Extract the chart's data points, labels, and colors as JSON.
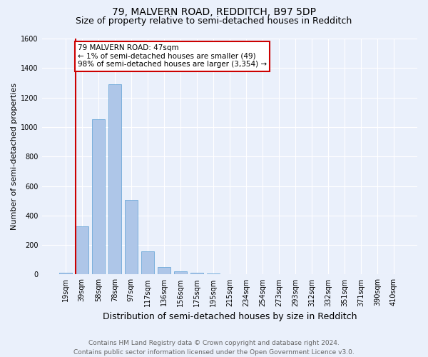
{
  "title": "79, MALVERN ROAD, REDDITCH, B97 5DP",
  "subtitle": "Size of property relative to semi-detached houses in Redditch",
  "xlabel": "Distribution of semi-detached houses by size in Redditch",
  "ylabel": "Number of semi-detached properties",
  "categories": [
    "19sqm",
    "39sqm",
    "58sqm",
    "78sqm",
    "97sqm",
    "117sqm",
    "136sqm",
    "156sqm",
    "175sqm",
    "195sqm",
    "215sqm",
    "234sqm",
    "254sqm",
    "273sqm",
    "293sqm",
    "312sqm",
    "332sqm",
    "351sqm",
    "371sqm",
    "390sqm",
    "410sqm"
  ],
  "values": [
    10,
    325,
    1055,
    1290,
    505,
    155,
    50,
    20,
    10,
    5,
    0,
    0,
    0,
    0,
    0,
    0,
    0,
    0,
    0,
    0,
    0
  ],
  "bar_color": "#aec6e8",
  "bar_edge_color": "#5a9fd4",
  "vline_color": "#cc0000",
  "vline_x_index": 1,
  "annotation_text": "79 MALVERN ROAD: 47sqm\n← 1% of semi-detached houses are smaller (49)\n98% of semi-detached houses are larger (3,354) →",
  "annotation_box_color": "#ffffff",
  "annotation_box_edgecolor": "#cc0000",
  "ylim": [
    0,
    1600
  ],
  "yticks": [
    0,
    200,
    400,
    600,
    800,
    1000,
    1200,
    1400,
    1600
  ],
  "background_color": "#eaf0fb",
  "footer": "Contains HM Land Registry data © Crown copyright and database right 2024.\nContains public sector information licensed under the Open Government Licence v3.0.",
  "title_fontsize": 10,
  "subtitle_fontsize": 9,
  "xlabel_fontsize": 9,
  "ylabel_fontsize": 8,
  "footer_fontsize": 6.5,
  "tick_fontsize": 7,
  "annot_fontsize": 7.5
}
